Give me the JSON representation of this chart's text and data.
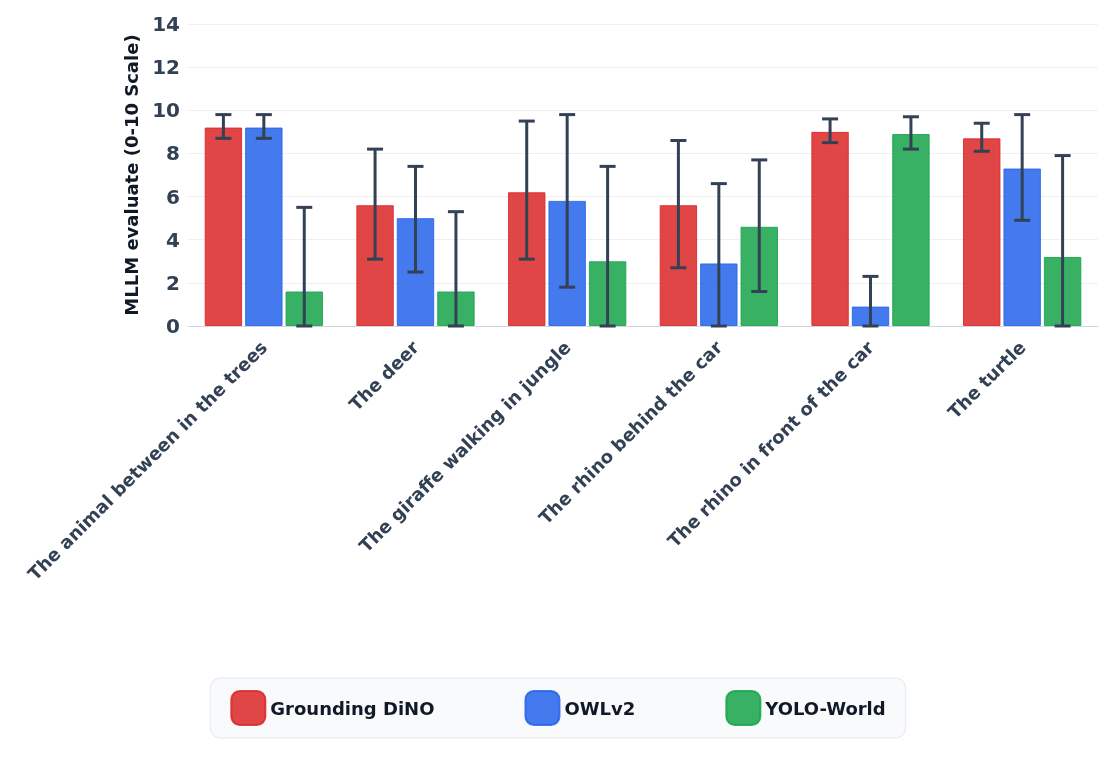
{
  "chart_data": {
    "type": "bar",
    "ylabel": "MLLM evaluate (0-10 Scale)",
    "categories": [
      "The animal between in the trees",
      "The deer",
      "The giraffe walking in jungle",
      "The rhino behind the car",
      "The rhino in front of the car",
      "The turtle"
    ],
    "series": [
      {
        "name": "Grounding DiNO",
        "color": "#dc2626",
        "values": [
          9.2,
          5.6,
          6.2,
          5.6,
          9.0,
          8.7
        ],
        "errors": [
          [
            8.7,
            9.8
          ],
          [
            3.1,
            8.2
          ],
          [
            3.1,
            9.5
          ],
          [
            2.7,
            8.6
          ],
          [
            8.5,
            9.6
          ],
          [
            8.1,
            9.4
          ]
        ]
      },
      {
        "name": "OWLv2",
        "color": "#2563eb",
        "values": [
          9.2,
          5.0,
          5.8,
          2.9,
          0.9,
          7.3
        ],
        "errors": [
          [
            8.7,
            9.8
          ],
          [
            2.5,
            7.4
          ],
          [
            1.8,
            9.8
          ],
          [
            0,
            6.6
          ],
          [
            0,
            2.3
          ],
          [
            4.9,
            9.8
          ]
        ]
      },
      {
        "name": "YOLO-World",
        "color": "#16a34a",
        "values": [
          1.6,
          1.6,
          3.0,
          4.6,
          8.9,
          3.2
        ],
        "errors": [
          [
            0,
            5.5
          ],
          [
            0,
            5.3
          ],
          [
            0,
            7.4
          ],
          [
            1.6,
            7.7
          ],
          [
            8.2,
            9.7
          ],
          [
            0,
            7.9
          ]
        ]
      }
    ],
    "ylim": [
      0,
      14
    ],
    "yticks": [
      0,
      2,
      4,
      6,
      8,
      10,
      12,
      14
    ],
    "grid": "y",
    "legend": "bottom"
  }
}
